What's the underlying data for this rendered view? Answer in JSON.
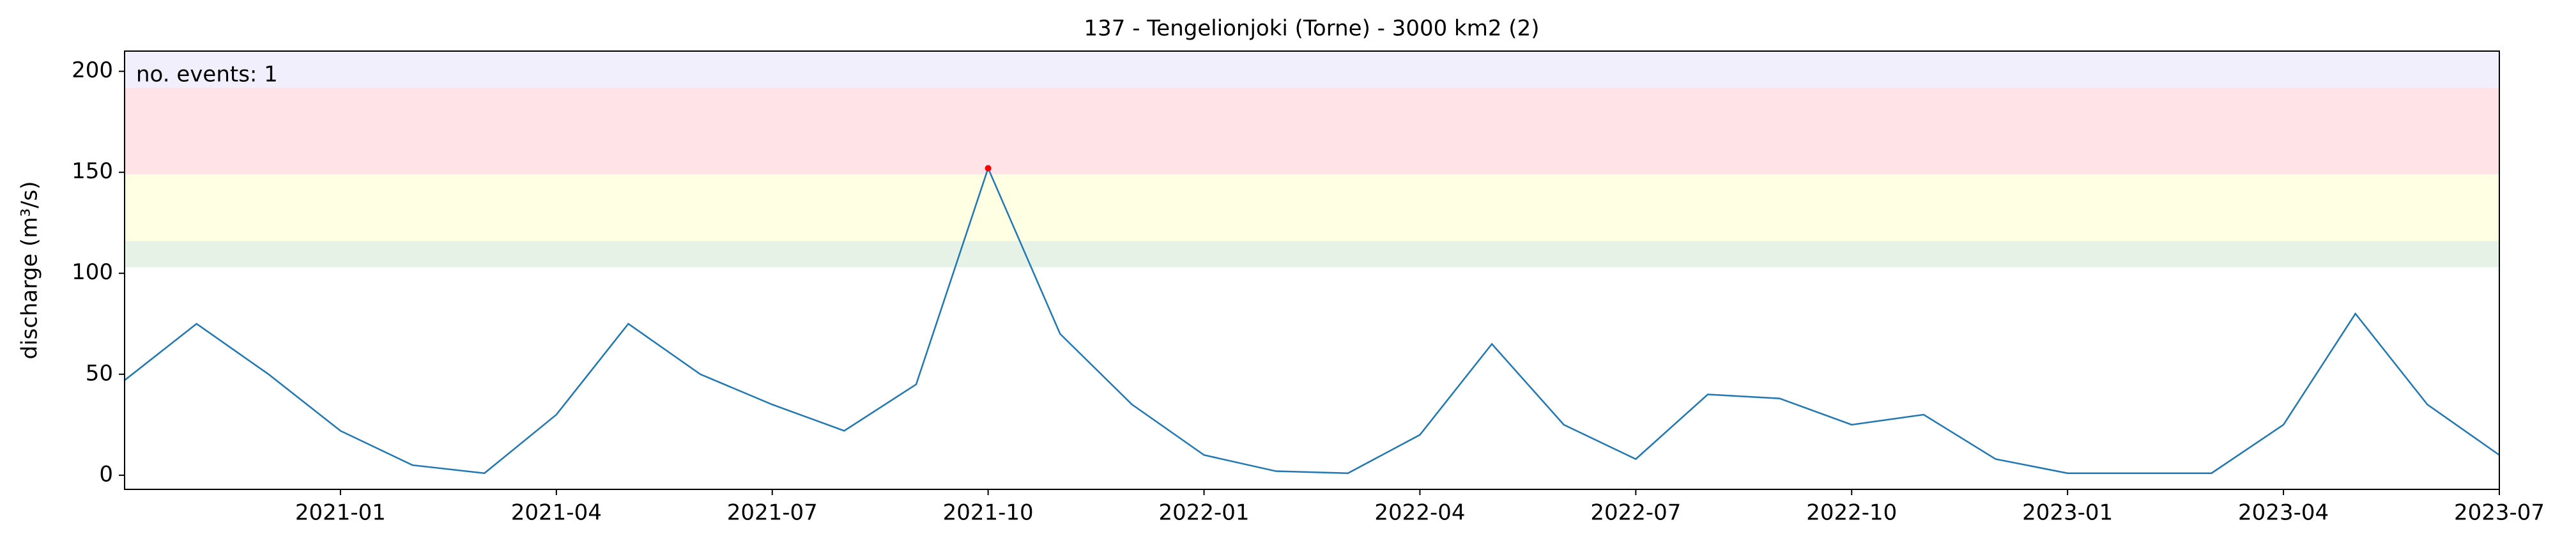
{
  "chart_data": {
    "type": "line",
    "title": "137 - Tengelionjoki (Torne) - 3000 km2 (2)",
    "y_label": "discharge (m³/s)",
    "annotation": "no. events: 1",
    "annotation_color": "#cc0000",
    "x": [
      "2020-10",
      "2020-11",
      "2020-12",
      "2021-01",
      "2021-02",
      "2021-03",
      "2021-04",
      "2021-05",
      "2021-06",
      "2021-07",
      "2021-08",
      "2021-09",
      "2021-10",
      "2021-11",
      "2021-12",
      "2022-01",
      "2022-02",
      "2022-03",
      "2022-04",
      "2022-05",
      "2022-06",
      "2022-07",
      "2022-08",
      "2022-09",
      "2022-10",
      "2022-11",
      "2022-12",
      "2023-01",
      "2023-02",
      "2023-03",
      "2023-04",
      "2023-05",
      "2023-06",
      "2023-07"
    ],
    "series": [
      {
        "name": "discharge",
        "color": "#1f77b4",
        "values": [
          47,
          75,
          50,
          22,
          5,
          1,
          30,
          75,
          50,
          35,
          22,
          45,
          152,
          70,
          35,
          10,
          2,
          1,
          20,
          65,
          25,
          8,
          40,
          38,
          25,
          30,
          8,
          1,
          1,
          1,
          25,
          80,
          35,
          10
        ]
      }
    ],
    "events": {
      "x": [
        "2021-10"
      ],
      "values": [
        152
      ],
      "color": "#ff0000"
    },
    "bands": [
      {
        "from": 103,
        "to": 116,
        "color": "#e6f2e6"
      },
      {
        "from": 116,
        "to": 149,
        "color": "#ffffe3"
      },
      {
        "from": 149,
        "to": 192,
        "color": "#ffe3e6"
      },
      {
        "from": 192,
        "to": 210,
        "color": "#f1effc"
      }
    ],
    "xlim": [
      "2020-10",
      "2023-07"
    ],
    "xticks": [
      "2021-01",
      "2021-04",
      "2021-07",
      "2021-10",
      "2022-01",
      "2022-04",
      "2022-07",
      "2022-10",
      "2023-01",
      "2023-04",
      "2023-07"
    ],
    "ylim": [
      -7,
      210
    ],
    "yticks": [
      0,
      50,
      100,
      150,
      200
    ]
  }
}
